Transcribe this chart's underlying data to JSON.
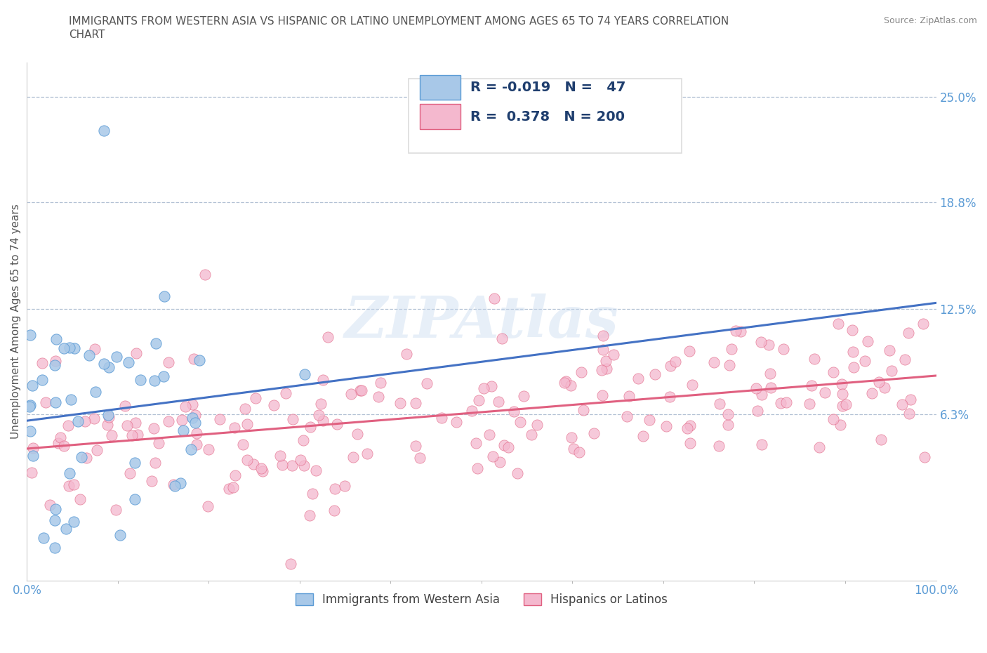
{
  "title_line1": "IMMIGRANTS FROM WESTERN ASIA VS HISPANIC OR LATINO UNEMPLOYMENT AMONG AGES 65 TO 74 YEARS CORRELATION",
  "title_line2": "CHART",
  "source_text": "Source: ZipAtlas.com",
  "ylabel": "Unemployment Among Ages 65 to 74 years",
  "xlim": [
    0,
    100
  ],
  "ylim": [
    -3.5,
    27
  ],
  "y_ticks": [
    6.3,
    12.5,
    18.8,
    25.0
  ],
  "x_tick_labels": [
    "0.0%",
    "100.0%"
  ],
  "y_tick_labels": [
    "6.3%",
    "12.5%",
    "18.8%",
    "25.0%"
  ],
  "series1_color": "#a8c8e8",
  "series1_edge": "#5b9bd5",
  "series1_line_color": "#4472c4",
  "series2_color": "#f4b8ce",
  "series2_edge": "#e06080",
  "series2_line_color": "#e06080",
  "legend_label1": "Immigrants from Western Asia",
  "legend_label2": "Hispanics or Latinos",
  "r1": -0.019,
  "n1": 47,
  "r2": 0.378,
  "n2": 200,
  "watermark": "ZIPAtlas",
  "background_color": "#ffffff",
  "grid_color": "#aabbd0",
  "title_color": "#555555",
  "tick_label_color": "#5b9bd5"
}
